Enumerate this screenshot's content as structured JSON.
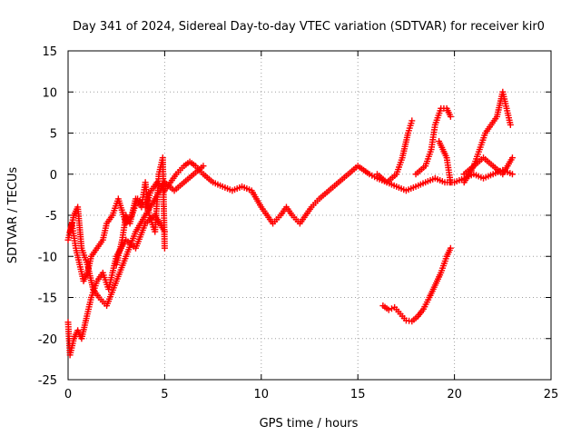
{
  "chart_data": {
    "type": "scatter",
    "title": "Day 341 of 2024, Sidereal Day-to-day VTEC variation (SDTVAR) for receiver kir0",
    "xlabel": "GPS time / hours",
    "ylabel": "SDTVAR / TECUs",
    "xlim": [
      0,
      25
    ],
    "ylim": [
      -25,
      15
    ],
    "xticks": [
      0,
      5,
      10,
      15,
      20,
      25
    ],
    "yticks": [
      -25,
      -20,
      -15,
      -10,
      -5,
      0,
      5,
      10,
      15
    ],
    "grid": true,
    "marker": "+",
    "color": "#ff0000",
    "series": [
      {
        "name": "main-trace",
        "x": [
          0,
          0.2,
          0.4,
          0.6,
          0.8,
          1.0,
          1.2,
          1.5,
          1.8,
          2.0,
          2.3,
          2.6,
          3.0,
          3.3,
          3.6,
          4.0,
          4.3,
          4.6,
          5.0,
          5.3,
          5.6,
          6.0,
          6.3,
          6.6,
          7.0,
          7.5,
          8.0,
          8.5,
          9.0,
          9.5,
          10.0,
          10.3,
          10.6,
          11.0,
          11.3,
          11.6,
          12.0,
          12.3,
          12.6,
          13.0,
          13.5,
          14.0,
          14.5,
          15.0,
          15.3,
          15.6,
          16.0,
          16.5,
          17.0,
          17.5,
          18.0,
          18.5,
          19.0,
          19.5,
          20.0,
          20.5,
          21.0,
          21.5,
          22.0,
          22.5,
          23.0
        ],
        "y": [
          -8,
          -6,
          -9,
          -11,
          -13,
          -12,
          -10,
          -9,
          -8,
          -6,
          -5,
          -3,
          -6,
          -5,
          -3,
          -4,
          -2,
          -1,
          -2,
          -1,
          0,
          1,
          1.5,
          1,
          0,
          -1,
          -1.5,
          -2,
          -1.5,
          -2,
          -4,
          -5,
          -6,
          -5,
          -4,
          -5,
          -6,
          -5,
          -4,
          -3,
          -2,
          -1,
          0,
          1,
          0.5,
          0,
          -0.5,
          -1,
          -1.5,
          -2,
          -1.5,
          -1,
          -0.5,
          -1,
          -1,
          -0.5,
          0,
          -0.5,
          0,
          0.5,
          0
        ]
      },
      {
        "name": "upper-branch-1",
        "x": [
          0.1,
          0.3,
          0.5,
          0.7,
          1.0,
          1.3,
          1.6,
          2.0,
          2.5,
          3.0,
          3.5,
          4.0,
          4.5,
          5.0,
          5.5,
          6.0,
          6.5,
          7.0
        ],
        "y": [
          -7,
          -5,
          -4,
          -9,
          -11,
          -14,
          -15,
          -16,
          -13,
          -10,
          -7,
          -5,
          -3,
          -1,
          -2,
          -1,
          0,
          1
        ]
      },
      {
        "name": "lower-branch",
        "x": [
          0,
          0.1,
          0.3,
          0.5,
          0.7,
          1.0,
          1.2,
          1.5,
          1.8,
          2.1,
          2.5,
          3.0,
          3.5,
          4.0,
          4.5,
          5.0
        ],
        "y": [
          -18,
          -22,
          -20,
          -19,
          -20,
          -17,
          -15,
          -13,
          -12,
          -14,
          -10,
          -8,
          -9,
          -6,
          -5,
          -7
        ]
      },
      {
        "name": "spike-series",
        "x": [
          2.5,
          2.8,
          3.0,
          3.2,
          3.5,
          3.8,
          4.0,
          4.2,
          4.5,
          4.7,
          4.9,
          5.0
        ],
        "y": [
          -11,
          -8,
          -5,
          -6,
          -3,
          -4,
          -1,
          -5,
          -7,
          0,
          2,
          -9
        ]
      },
      {
        "name": "late-rise-1",
        "x": [
          16.0,
          16.5,
          17.0,
          17.3,
          17.6,
          17.8
        ],
        "y": [
          0,
          -1,
          0,
          2,
          5,
          6.5
        ]
      },
      {
        "name": "late-rise-2",
        "x": [
          18.0,
          18.5,
          18.8,
          19.0,
          19.3,
          19.6,
          19.8
        ],
        "y": [
          0,
          1,
          3,
          6,
          8,
          8,
          7
        ]
      },
      {
        "name": "late-rise-3",
        "x": [
          19.2,
          19.6,
          19.8
        ],
        "y": [
          4,
          2,
          -1
        ]
      },
      {
        "name": "late-rise-4",
        "x": [
          20.5,
          21.0,
          21.3,
          21.6,
          21.9,
          22.2,
          22.5,
          22.7,
          22.9
        ],
        "y": [
          -1,
          1,
          3,
          5,
          6,
          7,
          10,
          8,
          6
        ]
      },
      {
        "name": "late-rise-5",
        "x": [
          20.5,
          21.0,
          21.5,
          22.0,
          22.5,
          23.0
        ],
        "y": [
          0,
          1,
          2,
          1,
          0,
          2
        ]
      },
      {
        "name": "isolated-arc",
        "x": [
          16.3,
          16.6,
          16.9,
          17.2,
          17.5,
          17.8,
          18.1,
          18.4,
          18.7,
          19.0,
          19.3,
          19.6,
          19.8
        ],
        "y": [
          -16,
          -16.5,
          -16.2,
          -17,
          -17.8,
          -17.9,
          -17.3,
          -16.4,
          -15,
          -13.5,
          -12,
          -10,
          -9
        ]
      }
    ]
  }
}
